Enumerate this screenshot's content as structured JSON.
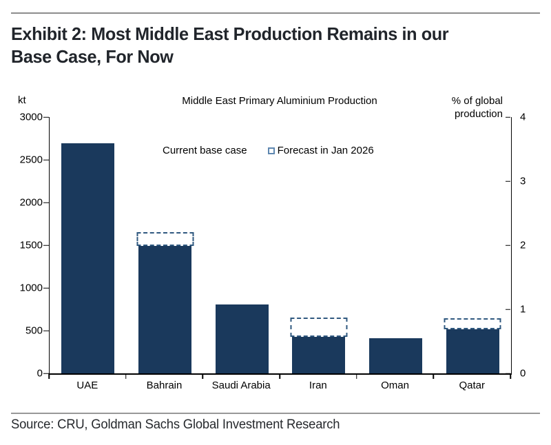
{
  "header": {
    "title_line1": "Exhibit 2: Most Middle East Production Remains in our",
    "title_line2": "Base Case, For Now"
  },
  "footer": {
    "source": "Source: CRU, Goldman Sachs Global Investment Research"
  },
  "colors": {
    "bar_navy": "#1a395c",
    "forecast_dash": "#2f587f",
    "legend_dash": "#5e87b0",
    "rule_gray": "#8c8c8c",
    "title_text": "#21252b"
  },
  "chart_data": {
    "type": "bar",
    "title": "Middle East Primary Aluminium Production",
    "left_axis": {
      "label": "kt",
      "max": 3000,
      "ticks": [
        0,
        500,
        1000,
        1500,
        2000,
        2500,
        3000
      ]
    },
    "right_axis": {
      "label": "% of global\nproduction",
      "max": 4,
      "ticks": [
        0,
        1,
        2,
        3,
        4
      ]
    },
    "categories": [
      "UAE",
      "Bahrain",
      "Saudi Arabia",
      "Iran",
      "Oman",
      "Qatar"
    ],
    "series": [
      {
        "name": "Current base case",
        "style": "solid",
        "color": "#1a395c",
        "values": [
          2690,
          1490,
          810,
          430,
          410,
          515
        ]
      },
      {
        "name": "Forecast in Jan 2026",
        "style": "dashed",
        "color": "#2f587f",
        "values": [
          null,
          1650,
          null,
          650,
          null,
          645
        ]
      }
    ],
    "legend_position": "top-center",
    "grid": false
  }
}
